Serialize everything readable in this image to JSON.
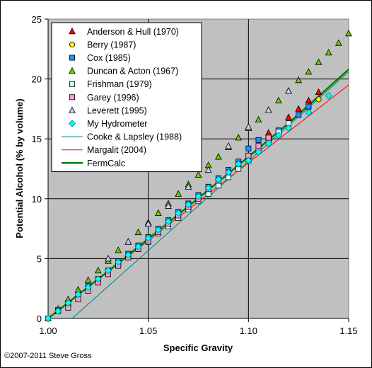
{
  "chart_data": {
    "type": "scatter",
    "xlabel": "Specific Gravity",
    "ylabel": "Potential Alcohol (% by volume)",
    "xlim": [
      1.0,
      1.15
    ],
    "ylim": [
      0,
      25
    ],
    "x_ticks": [
      "1.00",
      "1.05",
      "1.10",
      "1.15"
    ],
    "y_ticks": [
      "0",
      "5",
      "10",
      "15",
      "20",
      "25"
    ],
    "grid": true,
    "background": "#c0c0c0",
    "legend_position": "top-left",
    "copyright": "©2007-2011 Steve Gross",
    "series": [
      {
        "name": "Anderson & Hull (1970)",
        "kind": "triangle",
        "fill": "#ff0000",
        "stroke": "#000000",
        "x": [
          1.11,
          1.12,
          1.125,
          1.13,
          1.135
        ],
        "y": [
          15.5,
          16.8,
          17.5,
          18.2,
          18.9
        ]
      },
      {
        "name": "Berry (1987)",
        "kind": "circle",
        "fill": "#ffff00",
        "stroke": "#000000",
        "x": [
          1.12,
          1.125,
          1.13,
          1.135
        ],
        "y": [
          16.3,
          17.0,
          17.6,
          18.3
        ]
      },
      {
        "name": "Cox (1985)",
        "kind": "square",
        "fill": "#1e90ff",
        "stroke": "#000000",
        "x": [
          1.0,
          1.005,
          1.01,
          1.015,
          1.02,
          1.025,
          1.03,
          1.035,
          1.04,
          1.045,
          1.05,
          1.055,
          1.06,
          1.065,
          1.07,
          1.075,
          1.08,
          1.085,
          1.09,
          1.095,
          1.1,
          1.105,
          1.11,
          1.115,
          1.12,
          1.125,
          1.13
        ],
        "y": [
          0.0,
          0.7,
          1.3,
          2.0,
          2.7,
          3.3,
          4.0,
          4.7,
          5.4,
          6.1,
          6.8,
          7.5,
          8.2,
          8.9,
          9.6,
          10.3,
          11.0,
          11.7,
          12.4,
          13.1,
          14.2,
          14.9,
          15.0,
          15.7,
          16.3,
          17.0,
          17.7
        ]
      },
      {
        "name": "Duncan & Acton (1967)",
        "kind": "triangle",
        "fill": "#66cc00",
        "stroke": "#000000",
        "x": [
          1.0,
          1.005,
          1.01,
          1.015,
          1.02,
          1.025,
          1.03,
          1.035,
          1.04,
          1.045,
          1.05,
          1.055,
          1.06,
          1.065,
          1.07,
          1.075,
          1.08,
          1.085,
          1.09,
          1.095,
          1.1,
          1.105,
          1.11,
          1.115,
          1.12,
          1.125,
          1.13,
          1.135,
          1.14,
          1.145,
          1.15
        ],
        "y": [
          0.0,
          0.8,
          1.6,
          2.4,
          3.2,
          4.0,
          4.8,
          5.7,
          6.4,
          7.2,
          8.0,
          8.8,
          9.6,
          10.4,
          11.2,
          12.0,
          12.8,
          13.5,
          14.3,
          15.1,
          15.9,
          16.6,
          17.4,
          18.2,
          19.0,
          19.9,
          20.6,
          21.4,
          22.2,
          23.0,
          23.8
        ]
      },
      {
        "name": "Frishman (1979)",
        "kind": "square",
        "fill": "#ccffff",
        "stroke": "#000000",
        "x": [
          1.0,
          1.005,
          1.01,
          1.015,
          1.02,
          1.025,
          1.03,
          1.035,
          1.04,
          1.045,
          1.05,
          1.055,
          1.06,
          1.065,
          1.07,
          1.075,
          1.08,
          1.085,
          1.09,
          1.095,
          1.1,
          1.105,
          1.11,
          1.115,
          1.12
        ],
        "y": [
          0.0,
          0.6,
          1.2,
          1.9,
          2.5,
          3.2,
          3.8,
          4.5,
          5.1,
          5.8,
          6.4,
          7.1,
          7.7,
          8.4,
          9.1,
          9.8,
          10.4,
          11.1,
          11.8,
          12.5,
          13.2,
          14.0,
          14.9,
          15.6,
          16.3
        ]
      },
      {
        "name": "Garey (1996)",
        "kind": "square",
        "fill": "#ff99cc",
        "stroke": "#000000",
        "x": [
          1.01,
          1.015,
          1.02,
          1.025,
          1.03,
          1.035,
          1.04,
          1.045,
          1.05,
          1.055,
          1.06,
          1.065,
          1.07,
          1.075,
          1.08,
          1.085,
          1.09,
          1.095,
          1.1,
          1.105,
          1.11
        ],
        "y": [
          0.9,
          1.6,
          2.3,
          3.0,
          3.7,
          4.4,
          5.1,
          5.8,
          6.5,
          7.2,
          7.9,
          8.6,
          9.3,
          10.0,
          10.8,
          11.5,
          12.2,
          12.9,
          13.6,
          14.4,
          15.1
        ]
      },
      {
        "name": "Leverett (1995)",
        "kind": "triangle",
        "fill": "#ccccff",
        "stroke": "#000000",
        "x": [
          1.03,
          1.04,
          1.05,
          1.06,
          1.07,
          1.08,
          1.09,
          1.1,
          1.11,
          1.12
        ],
        "y": [
          5.0,
          6.4,
          7.9,
          9.4,
          11.0,
          12.4,
          14.4,
          16.0,
          17.4,
          19.0
        ]
      },
      {
        "name": "My Hydrometer",
        "kind": "diamond",
        "fill": "#00ffff",
        "stroke": "#008080",
        "x": [
          1.0,
          1.005,
          1.01,
          1.015,
          1.02,
          1.025,
          1.03,
          1.035,
          1.04,
          1.045,
          1.05,
          1.055,
          1.06,
          1.065,
          1.07,
          1.075,
          1.08,
          1.085,
          1.09,
          1.095,
          1.1,
          1.105,
          1.11,
          1.115,
          1.12,
          1.13,
          1.14
        ],
        "y": [
          0.0,
          0.6,
          1.3,
          2.0,
          2.6,
          3.3,
          4.0,
          4.7,
          5.3,
          6.0,
          6.7,
          7.4,
          8.1,
          8.8,
          9.5,
          10.2,
          10.9,
          11.6,
          12.2,
          12.9,
          13.2,
          13.9,
          14.6,
          15.3,
          15.9,
          17.2,
          18.6
        ]
      },
      {
        "name": "Cooke & Lapsley (1988)",
        "kind": "line",
        "stroke": "#008080",
        "width": 1,
        "x": [
          1.012,
          1.15
        ],
        "y": [
          0.0,
          20.6
        ]
      },
      {
        "name": "Margalit (2004)",
        "kind": "line",
        "stroke": "#ff0000",
        "width": 1,
        "x": [
          1.0,
          1.15
        ],
        "y": [
          0.0,
          19.5
        ]
      },
      {
        "name": "FermCalc",
        "kind": "line",
        "stroke": "#008000",
        "width": 2.5,
        "x": [
          1.0,
          1.03,
          1.06,
          1.09,
          1.12,
          1.15
        ],
        "y": [
          0.0,
          3.95,
          8.0,
          12.1,
          16.3,
          20.8
        ]
      }
    ]
  }
}
